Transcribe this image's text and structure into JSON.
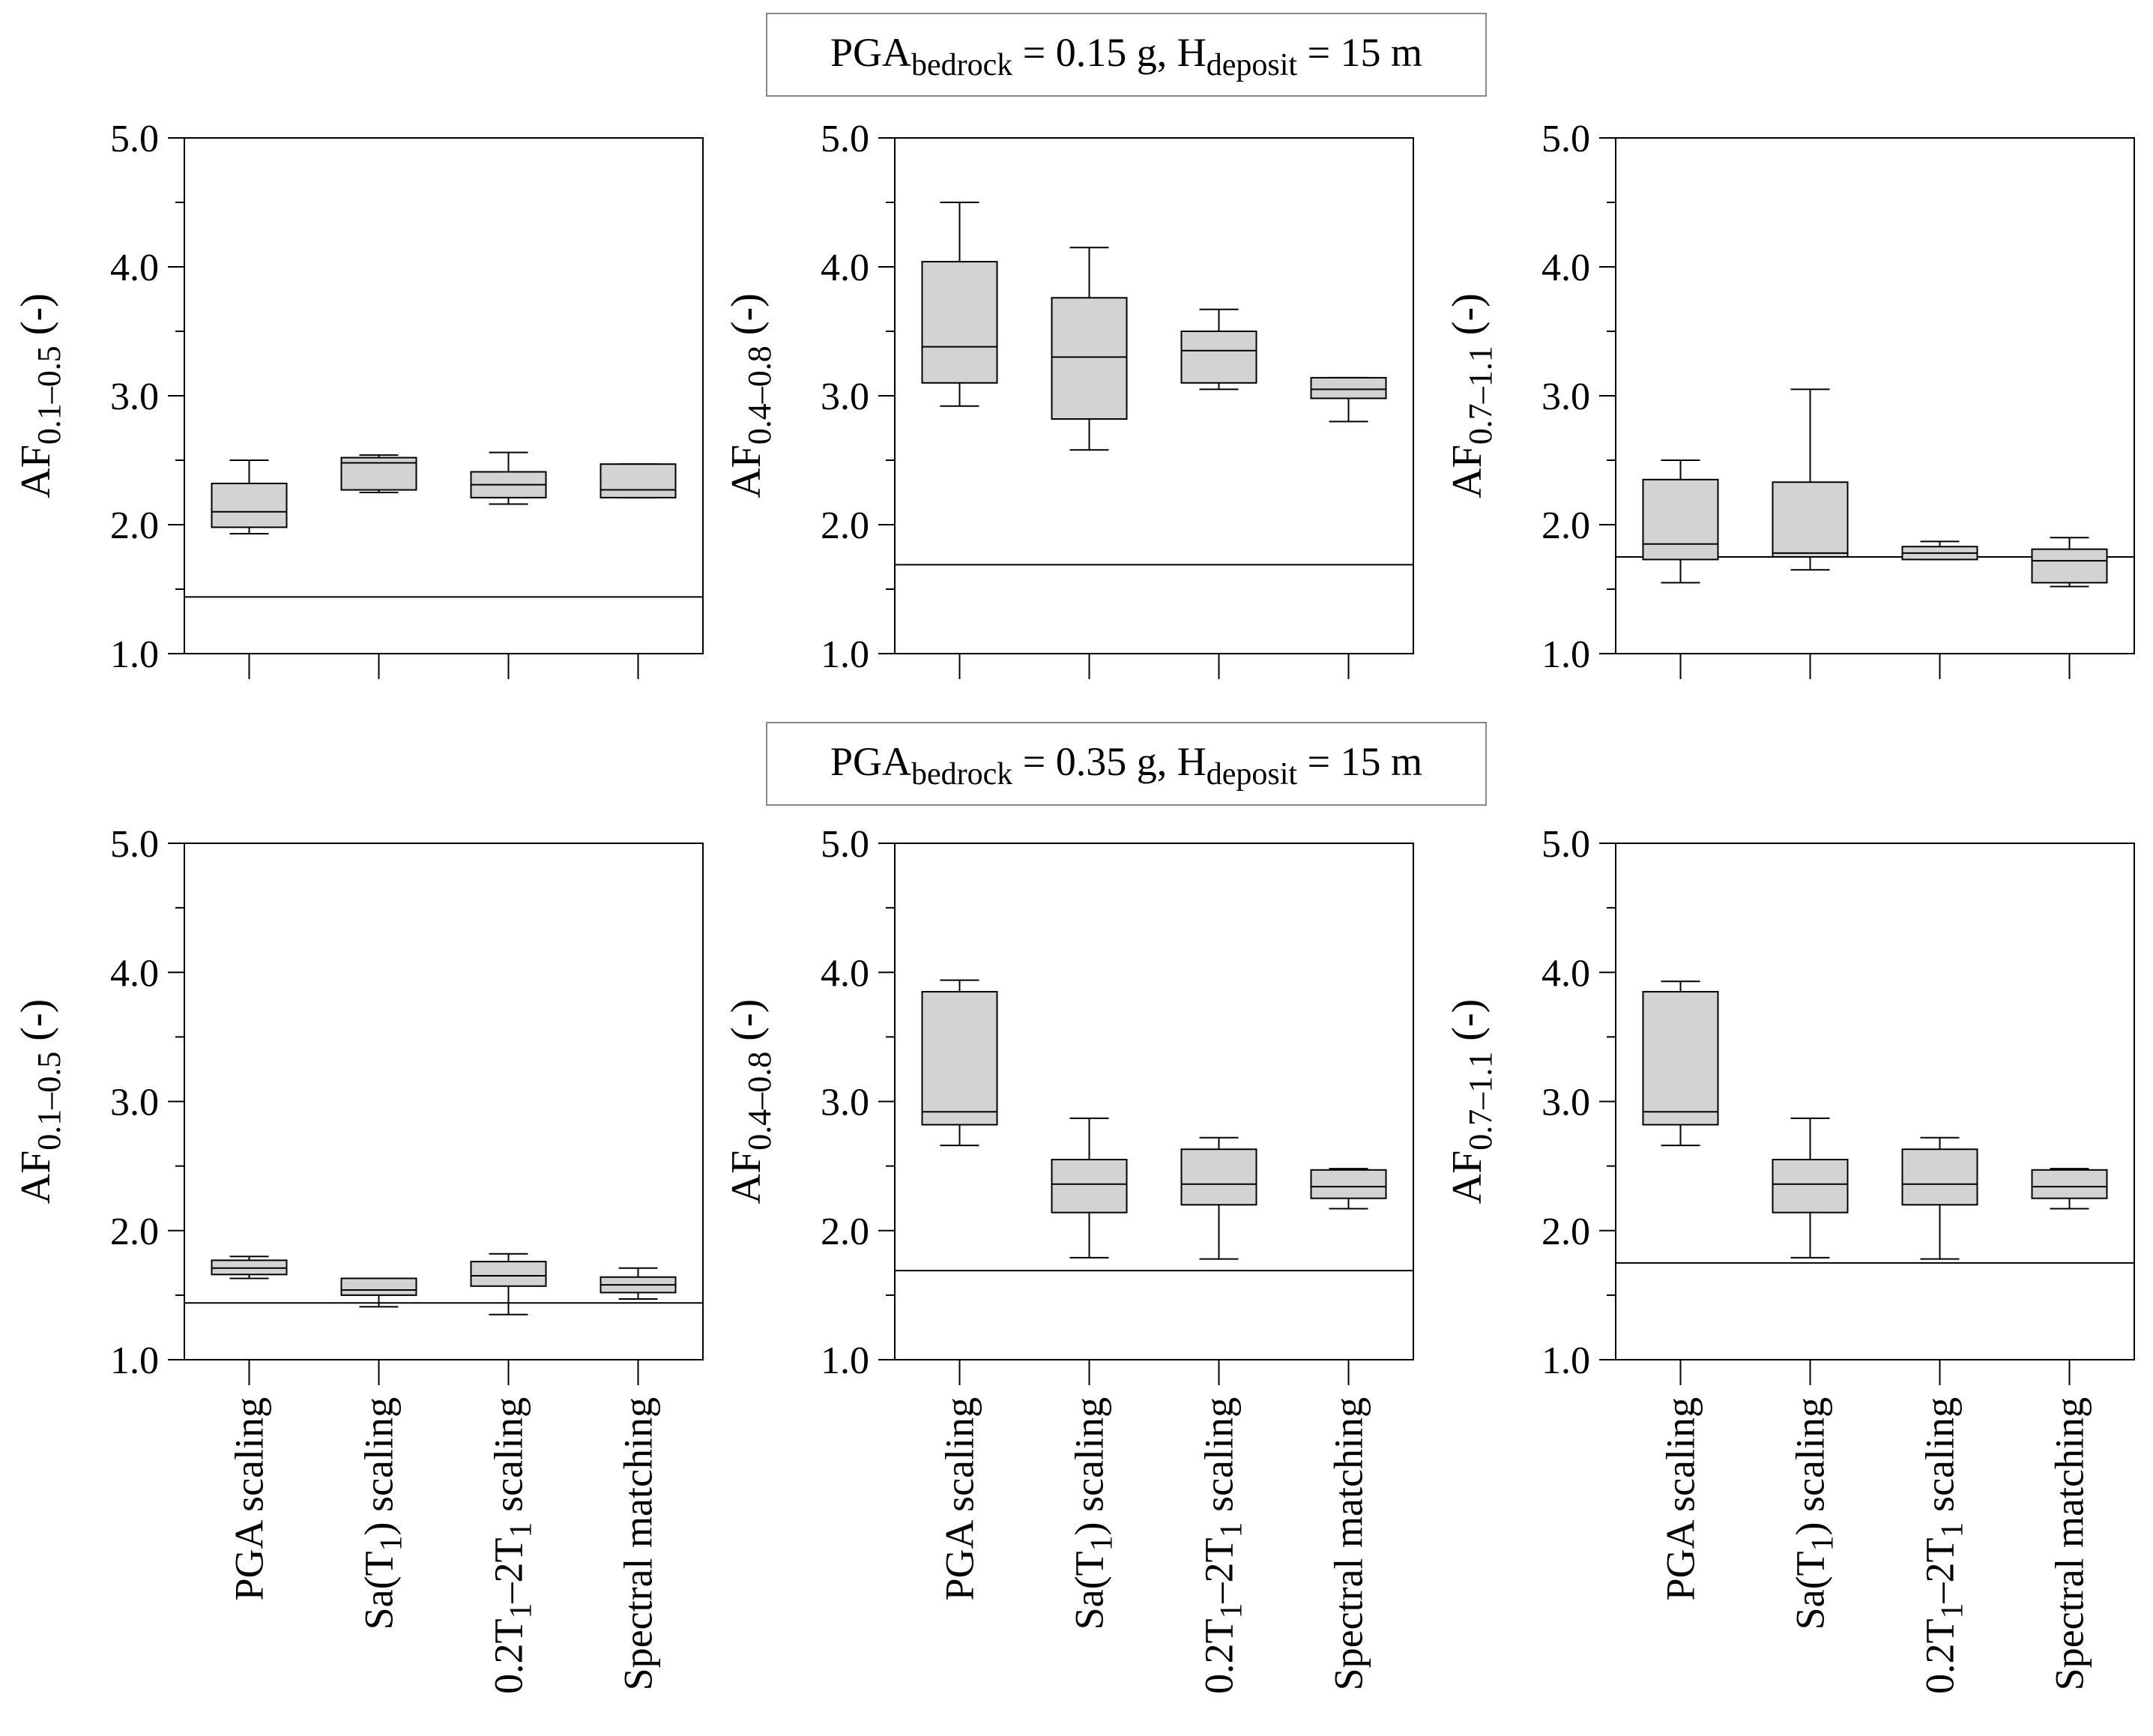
{
  "figure": {
    "row_titles": [
      {
        "prefix": "PGA",
        "sub1": "bedrock",
        "mid": " = 0.15 g, H",
        "sub2": "deposit",
        "suffix": " = 15 m"
      },
      {
        "prefix": "PGA",
        "sub1": "bedrock",
        "mid": " = 0.35 g, H",
        "sub2": "deposit",
        "suffix": " = 15 m"
      }
    ],
    "category_labels": [
      {
        "main": "PGA scaling",
        "sub": "",
        "tail": ""
      },
      {
        "main": "Sa(T",
        "sub": "1",
        "tail": ") scaling"
      },
      {
        "main": "0.2T",
        "sub": "1",
        "tail": "–2T",
        "sub2": "1",
        "tail2": " scaling"
      },
      {
        "main": "Spectral matching",
        "sub": "",
        "tail": ""
      }
    ],
    "y_ticks": [
      "5.0",
      "4.0",
      "3.0",
      "2.0",
      "1.0"
    ]
  },
  "chart_data": [
    {
      "type": "boxplot",
      "row": 1,
      "col": 1,
      "ylabel": "AF0.1–0.5 (-)",
      "ylabel_base": "AF",
      "ylabel_sub": "0.1–0.5",
      "ylabel_tail": " (-)",
      "ylim": [
        1.0,
        5.0
      ],
      "reference_line": 1.44,
      "categories": [
        "PGA scaling",
        "Sa(T1) scaling",
        "0.2T1–2T1 scaling",
        "Spectral matching"
      ],
      "boxes": [
        {
          "min": 1.93,
          "q1": 1.98,
          "median": 2.1,
          "q3": 2.32,
          "max": 2.5
        },
        {
          "min": 2.25,
          "q1": 2.27,
          "median": 2.48,
          "q3": 2.52,
          "max": 2.54
        },
        {
          "min": 2.16,
          "q1": 2.21,
          "median": 2.31,
          "q3": 2.41,
          "max": 2.56
        },
        {
          "min": 2.21,
          "q1": 2.21,
          "median": 2.27,
          "q3": 2.47,
          "max": 2.47
        }
      ]
    },
    {
      "type": "boxplot",
      "row": 1,
      "col": 2,
      "ylabel": "AF0.4–0.8 (-)",
      "ylabel_base": "AF",
      "ylabel_sub": "0.4–0.8",
      "ylabel_tail": " (-)",
      "ylim": [
        1.0,
        5.0
      ],
      "reference_line": 1.69,
      "categories": [
        "PGA scaling",
        "Sa(T1) scaling",
        "0.2T1–2T1 scaling",
        "Spectral matching"
      ],
      "boxes": [
        {
          "min": 2.92,
          "q1": 3.1,
          "median": 3.38,
          "q3": 4.04,
          "max": 4.5
        },
        {
          "min": 2.58,
          "q1": 2.82,
          "median": 3.3,
          "q3": 3.76,
          "max": 4.15
        },
        {
          "min": 3.05,
          "q1": 3.1,
          "median": 3.35,
          "q3": 3.5,
          "max": 3.67
        },
        {
          "min": 2.8,
          "q1": 2.98,
          "median": 3.05,
          "q3": 3.14,
          "max": 3.14
        }
      ]
    },
    {
      "type": "boxplot",
      "row": 1,
      "col": 3,
      "ylabel": "AF0.7–1.1 (-)",
      "ylabel_base": "AF",
      "ylabel_sub": "0.7–1.1",
      "ylabel_tail": " (-)",
      "ylim": [
        1.0,
        5.0
      ],
      "reference_line": 1.75,
      "categories": [
        "PGA scaling",
        "Sa(T1) scaling",
        "0.2T1–2T1 scaling",
        "Spectral matching"
      ],
      "boxes": [
        {
          "min": 1.55,
          "q1": 1.73,
          "median": 1.85,
          "q3": 2.35,
          "max": 2.5
        },
        {
          "min": 1.65,
          "q1": 1.75,
          "median": 1.78,
          "q3": 2.33,
          "max": 3.05
        },
        {
          "min": 1.73,
          "q1": 1.73,
          "median": 1.78,
          "q3": 1.83,
          "max": 1.87
        },
        {
          "min": 1.52,
          "q1": 1.55,
          "median": 1.72,
          "q3": 1.81,
          "max": 1.9
        }
      ]
    },
    {
      "type": "boxplot",
      "row": 2,
      "col": 1,
      "ylabel": "AF0.1–0.5 (-)",
      "ylabel_base": "AF",
      "ylabel_sub": "0.1–0.5",
      "ylabel_tail": " (-)",
      "ylim": [
        1.0,
        5.0
      ],
      "reference_line": 1.44,
      "categories": [
        "PGA scaling",
        "Sa(T1) scaling",
        "0.2T1–2T1 scaling",
        "Spectral matching"
      ],
      "boxes": [
        {
          "min": 1.63,
          "q1": 1.66,
          "median": 1.71,
          "q3": 1.77,
          "max": 1.8
        },
        {
          "min": 1.41,
          "q1": 1.5,
          "median": 1.54,
          "q3": 1.63,
          "max": 1.63
        },
        {
          "min": 1.35,
          "q1": 1.57,
          "median": 1.65,
          "q3": 1.76,
          "max": 1.82
        },
        {
          "min": 1.47,
          "q1": 1.52,
          "median": 1.58,
          "q3": 1.64,
          "max": 1.71
        }
      ]
    },
    {
      "type": "boxplot",
      "row": 2,
      "col": 2,
      "ylabel": "AF0.4–0.8 (-)",
      "ylabel_base": "AF",
      "ylabel_sub": "0.4–0.8",
      "ylabel_tail": " (-)",
      "ylim": [
        1.0,
        5.0
      ],
      "reference_line": 1.69,
      "categories": [
        "PGA scaling",
        "Sa(T1) scaling",
        "0.2T1–2T1 scaling",
        "Spectral matching"
      ],
      "boxes": [
        {
          "min": 2.66,
          "q1": 2.82,
          "median": 2.92,
          "q3": 3.85,
          "max": 3.94
        },
        {
          "min": 1.79,
          "q1": 2.14,
          "median": 2.36,
          "q3": 2.55,
          "max": 2.87
        },
        {
          "min": 1.78,
          "q1": 2.2,
          "median": 2.36,
          "q3": 2.63,
          "max": 2.72
        },
        {
          "min": 2.17,
          "q1": 2.25,
          "median": 2.34,
          "q3": 2.47,
          "max": 2.48
        }
      ]
    },
    {
      "type": "boxplot",
      "row": 2,
      "col": 3,
      "ylabel": "AF0.7–1.1 (-)",
      "ylabel_base": "AF",
      "ylabel_sub": "0.7–1.1",
      "ylabel_tail": " (-)",
      "ylim": [
        1.0,
        5.0
      ],
      "reference_line": 1.75,
      "categories": [
        "PGA scaling",
        "Sa(T1) scaling",
        "0.2T1–2T1 scaling",
        "Spectral matching"
      ],
      "boxes": [
        {
          "min": 2.66,
          "q1": 2.82,
          "median": 2.92,
          "q3": 3.85,
          "max": 3.93
        },
        {
          "min": 1.79,
          "q1": 2.14,
          "median": 2.36,
          "q3": 2.55,
          "max": 2.87
        },
        {
          "min": 1.78,
          "q1": 2.2,
          "median": 2.36,
          "q3": 2.63,
          "max": 2.72
        },
        {
          "min": 2.17,
          "q1": 2.25,
          "median": 2.34,
          "q3": 2.47,
          "max": 2.48
        }
      ]
    }
  ]
}
